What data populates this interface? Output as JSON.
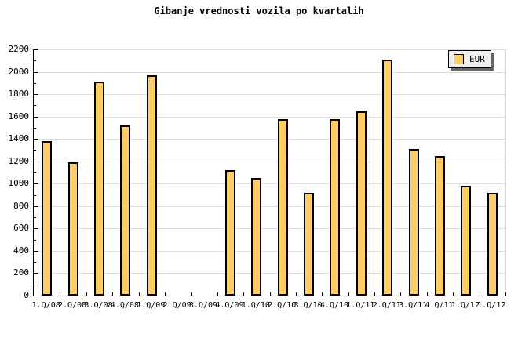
{
  "chart_data": {
    "type": "bar",
    "title": "Gibanje vrednosti vozila po kvartalih",
    "legend_label": "EUR",
    "legend_position": "top-right",
    "categories": [
      "1.Q/08",
      "2.Q/08",
      "3.Q/08",
      "4.Q/08",
      "1.Q/09",
      "2.Q/09",
      "3.Q/09",
      "4.Q/09",
      "1.Q/10",
      "2.Q/10",
      "3.Q/10",
      "4.Q/10",
      "1.Q/11",
      "2.Q/11",
      "3.Q/11",
      "4.Q/11",
      "1.Q/12",
      "1.Q/12"
    ],
    "values": [
      1380,
      1190,
      1910,
      1520,
      1970,
      null,
      null,
      1120,
      1050,
      1580,
      920,
      1580,
      1650,
      2110,
      1310,
      1250,
      980,
      920
    ],
    "xlabel": "",
    "ylabel": "",
    "ylim": [
      0,
      2200
    ],
    "ytick_major": 200,
    "ytick_minor": 100,
    "grid": true,
    "colors": {
      "bar_fill": "#FFCC66",
      "bar_border": "#000000",
      "gridline": "#DCDCDC",
      "legend_bg": "#EFEFEF",
      "legend_shadow": "#666666",
      "background": "#FFFFFF",
      "text": "#000000"
    }
  }
}
